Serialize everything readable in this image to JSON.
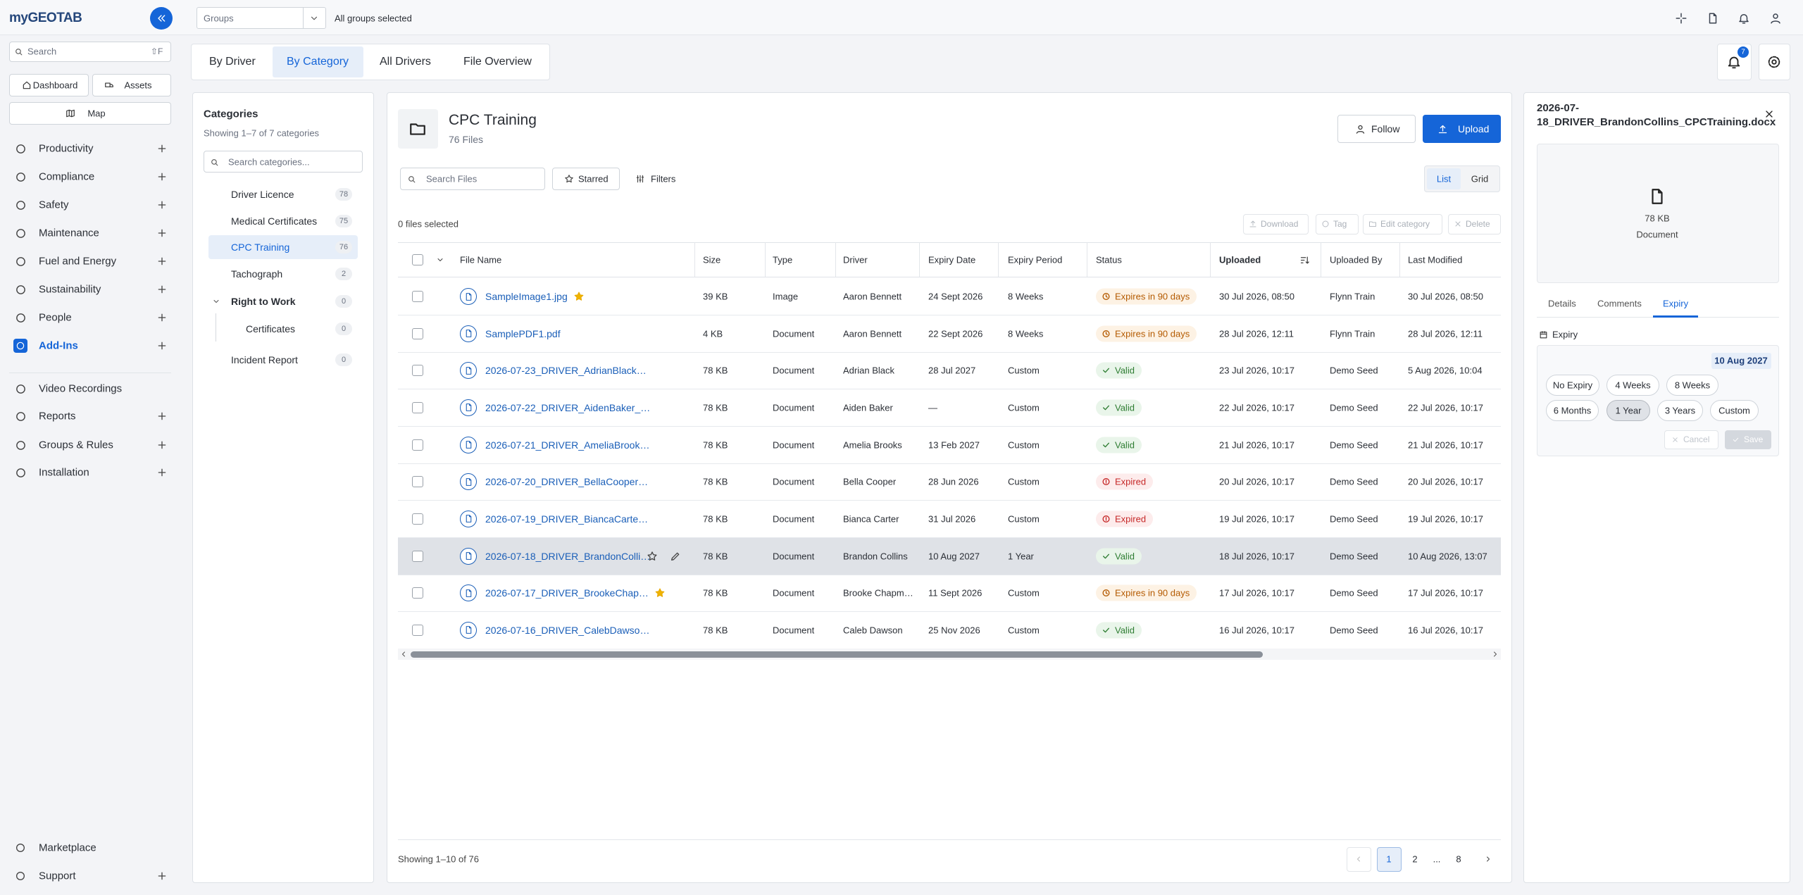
{
  "sidebar": {
    "logo": "myGEOTAB",
    "search": "Search",
    "search_shortcut": "⇧F",
    "quick": [
      "Dashboard",
      "Assets",
      "Map"
    ],
    "nav": [
      {
        "label": "Productivity",
        "expandable": true
      },
      {
        "label": "Compliance",
        "expandable": true
      },
      {
        "label": "Safety",
        "expandable": true
      },
      {
        "label": "Maintenance",
        "expandable": true
      },
      {
        "label": "Fuel and Energy",
        "expandable": true
      },
      {
        "label": "Sustainability",
        "expandable": true
      },
      {
        "label": "People",
        "expandable": true
      },
      {
        "label": "Add-Ins",
        "expandable": true,
        "active": true
      },
      {
        "label": "Video Recordings",
        "expandable": false
      },
      {
        "label": "Reports",
        "expandable": true
      },
      {
        "label": "Groups & Rules",
        "expandable": true
      },
      {
        "label": "Installation",
        "expandable": true
      }
    ],
    "bottom": [
      {
        "label": "Marketplace",
        "expandable": false
      },
      {
        "label": "Support",
        "expandable": true
      }
    ]
  },
  "topbar": {
    "groups_placeholder": "Groups",
    "groups_status": "All groups selected"
  },
  "tabs": [
    {
      "label": "By Driver",
      "active": false
    },
    {
      "label": "By Category",
      "active": true
    },
    {
      "label": "All Drivers",
      "active": false
    },
    {
      "label": "File Overview",
      "active": false
    }
  ],
  "notifications": "7",
  "categories": {
    "title": "Categories",
    "summary": "Showing 1–7 of 7 categories",
    "search_placeholder": "Search categories...",
    "items": [
      {
        "name": "Driver Licence",
        "count": "78"
      },
      {
        "name": "Medical Certificates",
        "count": "75"
      },
      {
        "name": "CPC Training",
        "count": "76",
        "active": true
      },
      {
        "name": "Tachograph",
        "count": "2"
      },
      {
        "name": "Right to Work",
        "count": "0",
        "expanded": true
      },
      {
        "name": "Certificates",
        "count": "0",
        "child": true
      },
      {
        "name": "Incident Report",
        "count": "0"
      }
    ]
  },
  "folder": {
    "title": "CPC Training",
    "subtitle": "76 Files",
    "follow": "Follow",
    "upload": "Upload"
  },
  "toolbar": {
    "search_placeholder": "Search Files",
    "starred": "Starred",
    "filters": "Filters",
    "views": [
      {
        "label": "List",
        "active": true
      },
      {
        "label": "Grid",
        "active": false
      }
    ]
  },
  "selection": {
    "text": "0 files selected",
    "actions": [
      "Download",
      "Tag",
      "Edit category",
      "Delete"
    ]
  },
  "table": {
    "columns": [
      {
        "label": "File Name"
      },
      {
        "label": "Size"
      },
      {
        "label": "Type"
      },
      {
        "label": "Driver"
      },
      {
        "label": "Expiry Date"
      },
      {
        "label": "Expiry Period"
      },
      {
        "label": "Status"
      },
      {
        "label": "Uploaded",
        "sorted": true
      },
      {
        "label": "Uploaded By"
      },
      {
        "label": "Last Modified"
      }
    ],
    "rows": [
      {
        "name": "SampleImage1.jpg",
        "size": "39 KB",
        "type": "Image",
        "driver": "Aaron Bennett",
        "expiry_date": "24 Sept 2026",
        "expiry_period": "8 Weeks",
        "status": "Expires in 90 days",
        "status_kind": "warning",
        "uploaded": "30 Jul 2026, 08:50",
        "uploaded_by": "Flynn Train",
        "last_modified": "30 Jul 2026, 08:50",
        "starred": true
      },
      {
        "name": "SamplePDF1.pdf",
        "size": "4 KB",
        "type": "Document",
        "driver": "Aaron Bennett",
        "expiry_date": "22 Sept 2026",
        "expiry_period": "8 Weeks",
        "status": "Expires in 90 days",
        "status_kind": "warning",
        "uploaded": "28 Jul 2026, 12:11",
        "uploaded_by": "Flynn Train",
        "last_modified": "28 Jul 2026, 12:11"
      },
      {
        "name": "2026-07-23_DRIVER_AdrianBlack…",
        "size": "78 KB",
        "type": "Document",
        "driver": "Adrian Black",
        "expiry_date": "28 Jul 2027",
        "expiry_period": "Custom",
        "status": "Valid",
        "status_kind": "valid",
        "uploaded": "23 Jul 2026, 10:17",
        "uploaded_by": "Demo Seed",
        "last_modified": "5 Aug 2026, 10:04"
      },
      {
        "name": "2026-07-22_DRIVER_AidenBaker_…",
        "size": "78 KB",
        "type": "Document",
        "driver": "Aiden Baker",
        "expiry_date": "—",
        "expiry_period": "Custom",
        "status": "Valid",
        "status_kind": "valid",
        "uploaded": "22 Jul 2026, 10:17",
        "uploaded_by": "Demo Seed",
        "last_modified": "22 Jul 2026, 10:17"
      },
      {
        "name": "2026-07-21_DRIVER_AmeliaBrook…",
        "size": "78 KB",
        "type": "Document",
        "driver": "Amelia Brooks",
        "expiry_date": "13 Feb 2027",
        "expiry_period": "Custom",
        "status": "Valid",
        "status_kind": "valid",
        "uploaded": "21 Jul 2026, 10:17",
        "uploaded_by": "Demo Seed",
        "last_modified": "21 Jul 2026, 10:17"
      },
      {
        "name": "2026-07-20_DRIVER_BellaCooper…",
        "size": "78 KB",
        "type": "Document",
        "driver": "Bella Cooper",
        "expiry_date": "28 Jun 2026",
        "expiry_period": "Custom",
        "status": "Expired",
        "status_kind": "expired",
        "uploaded": "20 Jul 2026, 10:17",
        "uploaded_by": "Demo Seed",
        "last_modified": "20 Jul 2026, 10:17"
      },
      {
        "name": "2026-07-19_DRIVER_BiancaCarte…",
        "size": "78 KB",
        "type": "Document",
        "driver": "Bianca Carter",
        "expiry_date": "31 Jul 2026",
        "expiry_period": "Custom",
        "status": "Expired",
        "status_kind": "expired",
        "uploaded": "19 Jul 2026, 10:17",
        "uploaded_by": "Demo Seed",
        "last_modified": "19 Jul 2026, 10:17"
      },
      {
        "name": "2026-07-18_DRIVER_BrandonColli…",
        "size": "78 KB",
        "type": "Document",
        "driver": "Brandon Collins",
        "expiry_date": "10 Aug 2027",
        "expiry_period": "1 Year",
        "status": "Valid",
        "status_kind": "valid",
        "uploaded": "18 Jul 2026, 10:17",
        "uploaded_by": "Demo Seed",
        "last_modified": "10 Aug 2026, 13:07",
        "selected": true
      },
      {
        "name": "2026-07-17_DRIVER_BrookeChap…",
        "size": "78 KB",
        "type": "Document",
        "driver": "Brooke Chapm…",
        "expiry_date": "11 Sept 2026",
        "expiry_period": "Custom",
        "status": "Expires in 90 days",
        "status_kind": "warning",
        "uploaded": "17 Jul 2026, 10:17",
        "uploaded_by": "Demo Seed",
        "last_modified": "17 Jul 2026, 10:17",
        "starred": true
      },
      {
        "name": "2026-07-16_DRIVER_CalebDawso…",
        "size": "78 KB",
        "type": "Document",
        "driver": "Caleb Dawson",
        "expiry_date": "25 Nov 2026",
        "expiry_period": "Custom",
        "status": "Valid",
        "status_kind": "valid",
        "uploaded": "16 Jul 2026, 10:17",
        "uploaded_by": "Demo Seed",
        "last_modified": "16 Jul 2026, 10:17"
      }
    ]
  },
  "pagination": {
    "summary": "Showing 1–10 of 76",
    "pages": [
      {
        "label": "1",
        "active": true
      },
      {
        "label": "2"
      },
      {
        "label": "..."
      },
      {
        "label": "8"
      }
    ]
  },
  "detail": {
    "filename": "2026-07-18_DRIVER_BrandonCollins_CPCTraining.docx",
    "size": "78 KB",
    "kind": "Document",
    "tabs": [
      {
        "label": "Details"
      },
      {
        "label": "Comments"
      },
      {
        "label": "Expiry",
        "active": true
      }
    ],
    "section": "Expiry",
    "date": "10 Aug 2027",
    "options": [
      {
        "label": "No Expiry"
      },
      {
        "label": "4 Weeks"
      },
      {
        "label": "8 Weeks"
      },
      {
        "label": "6 Months"
      },
      {
        "label": "1 Year",
        "active": true
      },
      {
        "label": "3 Years"
      },
      {
        "label": "Custom"
      }
    ],
    "cancel": "Cancel",
    "save": "Save"
  }
}
